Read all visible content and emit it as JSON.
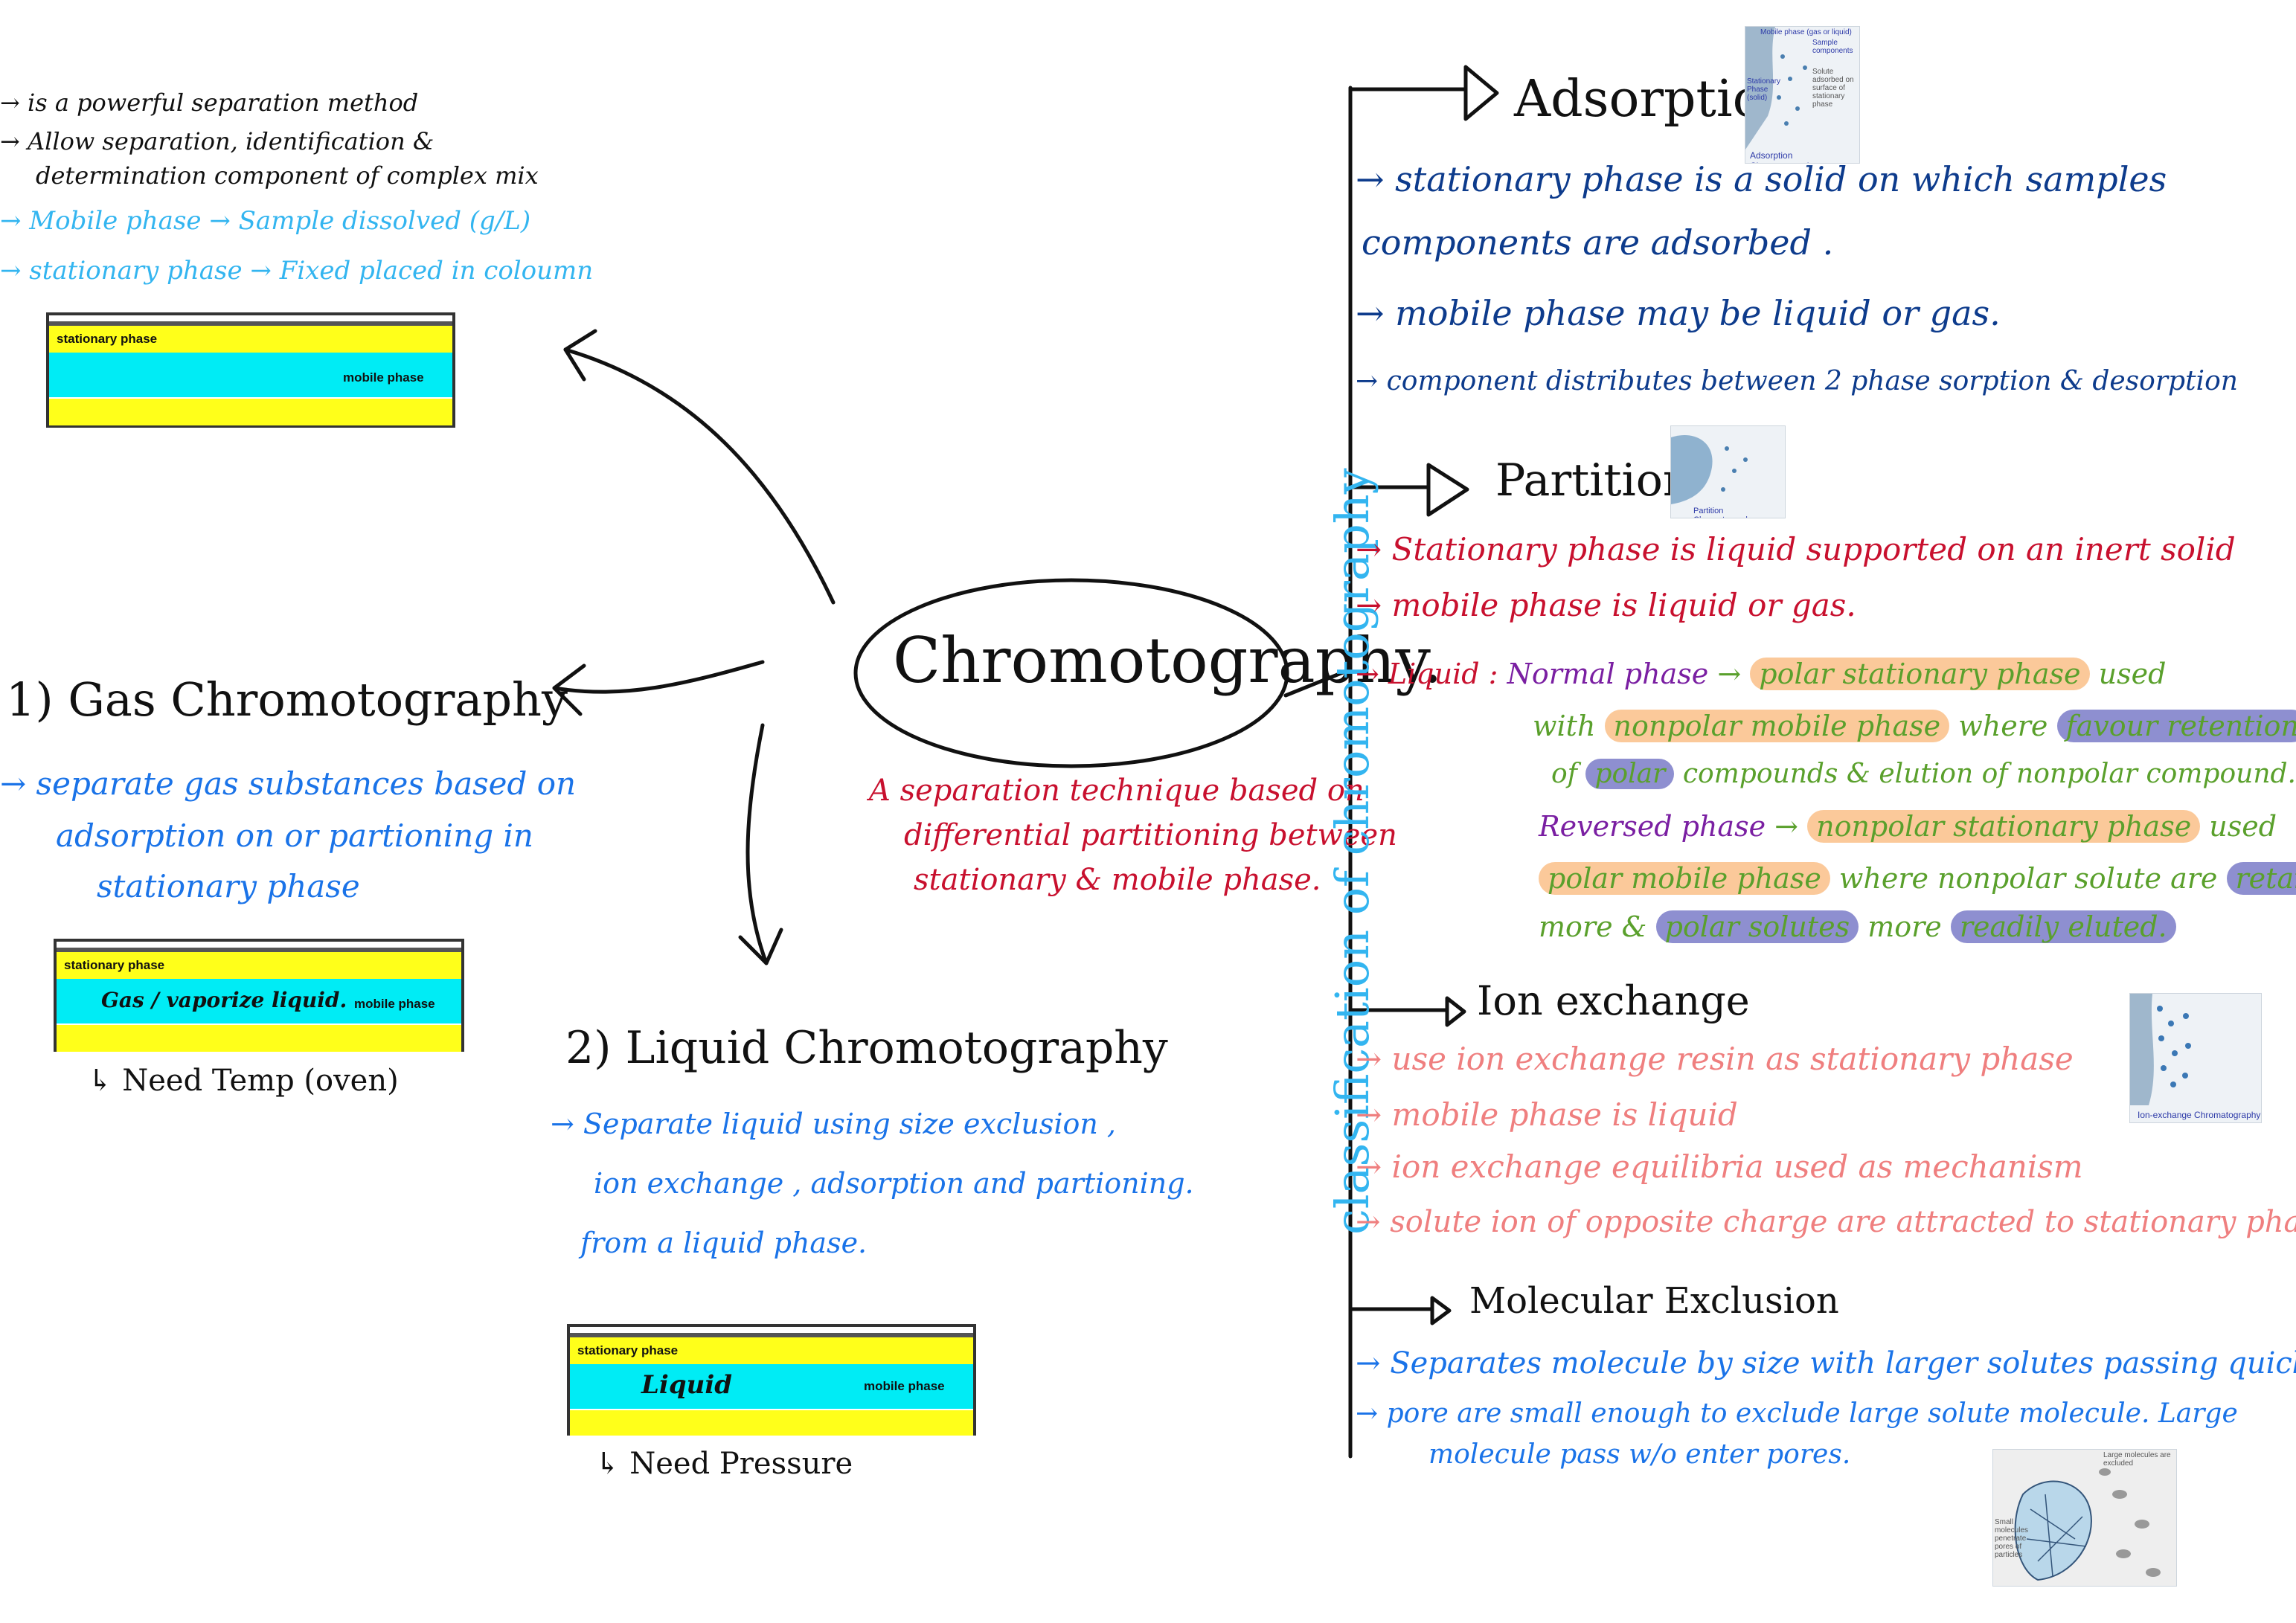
{
  "center": {
    "title": "Chromotography.",
    "definition": [
      "A separation technique based on",
      "differential partitioning between",
      "stationary  & mobile phase."
    ]
  },
  "intro": {
    "lines": [
      "→ is a powerful separation method",
      "→ Allow separation, identification &",
      "determination component of complex mix"
    ],
    "mobile": "→ Mobile phase → Sample dissolved (g/L)",
    "stationary": "→ stationary phase → Fixed placed in coloumn",
    "bar": {
      "stationary_label": "stationary phase",
      "mobile_label": "mobile phase"
    }
  },
  "gas": {
    "title": "1) Gas Chromotography",
    "lines": [
      "→ separate gas substances based on",
      "adsorption on  or partioning in",
      "stationary phase"
    ],
    "bar": {
      "stationary_label": "stationary phase",
      "inner_label": "Gas / vaporize liquid.",
      "mobile_label": "mobile phase"
    },
    "note": "↳ Need Temp (oven)"
  },
  "liquid": {
    "title": "2) Liquid Chromotography",
    "lines": [
      "→ Separate liquid using size exclusion ,",
      "ion exchange , adsorption and partioning.",
      "from a liquid phase."
    ],
    "bar": {
      "stationary_label": "stationary phase",
      "inner_label": "Liquid",
      "mobile_label": "mobile phase"
    },
    "note": "↳ Need Pressure"
  },
  "classification_label": "classification of chromotography",
  "adsorption": {
    "title": "Adsorption",
    "lines": [
      "→ stationary phase is a solid on which samples",
      "components are adsorbed .",
      "→ mobile phase may be liquid or gas.",
      "→ component distributes between 2 phase sorption & desorption"
    ],
    "thumb": {
      "caption": "Adsorption Chromatography",
      "labels": [
        "Mobile phase (gas or liquid)",
        "Sample components",
        "Solute adsorbed on surface of stationary phase",
        "Stationary Phase (solid)"
      ]
    }
  },
  "partition": {
    "title": "Partition",
    "lines": [
      "→ Stationary phase is liquid supported on an inert solid",
      "→ mobile phase is liquid or gas."
    ],
    "liquid_label": "→ Liquid :",
    "normal": {
      "label": "Normal phase",
      "arrow": "→",
      "hl1": "polar stationary phase",
      "t1": "used",
      "t2": "with",
      "hl2": "nonpolar mobile phase",
      "t3": "where",
      "hl3": "favour retention",
      "t4": "of",
      "hl4": "polar",
      "t5": "compounds & elution of nonpolar compound."
    },
    "reversed": {
      "label": "Reversed phase",
      "arrow": "→",
      "hl1": "nonpolar stationary phase",
      "t1": "used",
      "hl2": "polar mobile phase",
      "t2": "where",
      "t3": "nonpolar solute",
      "t4": "are",
      "hl3": "retained",
      "t5": "more &",
      "hl4": "polar solutes",
      "t6": "more",
      "hl5": "readily eluted."
    },
    "thumb": {
      "caption": "Partition Chromatography"
    }
  },
  "ion": {
    "title": "Ion exchange",
    "lines": [
      "→ use ion exchange resin as stationary phase",
      "→ mobile phase is liquid",
      "→ ion exchange equilibria used as mechanism",
      "→ solute ion of opposite charge are attracted to stationary phase"
    ],
    "thumb": {
      "caption": "Ion-exchange Chromatography"
    }
  },
  "exclusion": {
    "title": "Molecular Exclusion",
    "lines": [
      "→ Separates molecule by size with larger solutes passing quickly",
      "→ pore are small enough to exclude large solute molecule. Large",
      "molecule pass w/o enter pores."
    ],
    "thumb": {
      "labels": [
        "Large molecules are excluded",
        "Small molecules penetrate pores of particles"
      ]
    }
  },
  "colors": {
    "black": "#111111",
    "blue": "#1a73e8",
    "cyan": "#33b5f0",
    "navy": "#0d3b8c",
    "red": "#c8102e",
    "pink": "#ef7f7f",
    "purple": "#7a1fa2",
    "green": "#5aa02c",
    "yellow": "#ffff1a",
    "aqua": "#00ecf5"
  }
}
